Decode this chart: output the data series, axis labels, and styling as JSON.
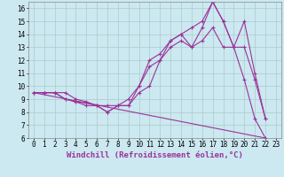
{
  "xlabel": "Windchill (Refroidissement éolien,°C)",
  "bg_color": "#cce8f0",
  "line_color": "#993399",
  "xlim": [
    -0.5,
    23.5
  ],
  "ylim": [
    6,
    16.5
  ],
  "xticks": [
    0,
    1,
    2,
    3,
    4,
    5,
    6,
    7,
    8,
    9,
    10,
    11,
    12,
    13,
    14,
    15,
    16,
    17,
    18,
    19,
    20,
    21,
    22,
    23
  ],
  "yticks": [
    6,
    7,
    8,
    9,
    10,
    11,
    12,
    13,
    14,
    15,
    16
  ],
  "series1_x": [
    0,
    1,
    2,
    3,
    4,
    5,
    6,
    7,
    8,
    9,
    10,
    11,
    12,
    13,
    14,
    15,
    16,
    17,
    18,
    19,
    20,
    21,
    22
  ],
  "series1_y": [
    9.5,
    9.5,
    9.5,
    9.0,
    8.8,
    8.5,
    8.5,
    8.0,
    8.5,
    8.5,
    9.5,
    10.0,
    12.0,
    13.0,
    13.5,
    13.0,
    13.5,
    14.5,
    13.0,
    13.0,
    10.5,
    7.5,
    6.0
  ],
  "series2_x": [
    0,
    1,
    2,
    3,
    4,
    5,
    6,
    7,
    8,
    9,
    10,
    11,
    12,
    13,
    14,
    15,
    16,
    17,
    18,
    19,
    20,
    21,
    22
  ],
  "series2_y": [
    9.5,
    9.5,
    9.5,
    9.0,
    8.8,
    8.7,
    8.5,
    8.5,
    8.5,
    9.0,
    10.0,
    12.0,
    12.5,
    13.5,
    14.0,
    13.0,
    14.5,
    16.5,
    15.0,
    13.0,
    13.0,
    10.5,
    7.5
  ],
  "series3_x": [
    0,
    1,
    2,
    3,
    4,
    5,
    6,
    7,
    8,
    9,
    10,
    11,
    12,
    13,
    14,
    15,
    16,
    17,
    18,
    19,
    20,
    21,
    22
  ],
  "series3_y": [
    9.5,
    9.5,
    9.5,
    9.5,
    9.0,
    8.8,
    8.5,
    8.0,
    8.5,
    8.5,
    10.0,
    11.5,
    12.0,
    13.5,
    14.0,
    14.5,
    15.0,
    16.5,
    15.0,
    13.0,
    15.0,
    11.0,
    7.5
  ],
  "series4_x": [
    0,
    22
  ],
  "series4_y": [
    9.5,
    6.0
  ],
  "grid_color": "#aacccc",
  "label_fontsize": 6.5,
  "tick_fontsize": 5.5
}
